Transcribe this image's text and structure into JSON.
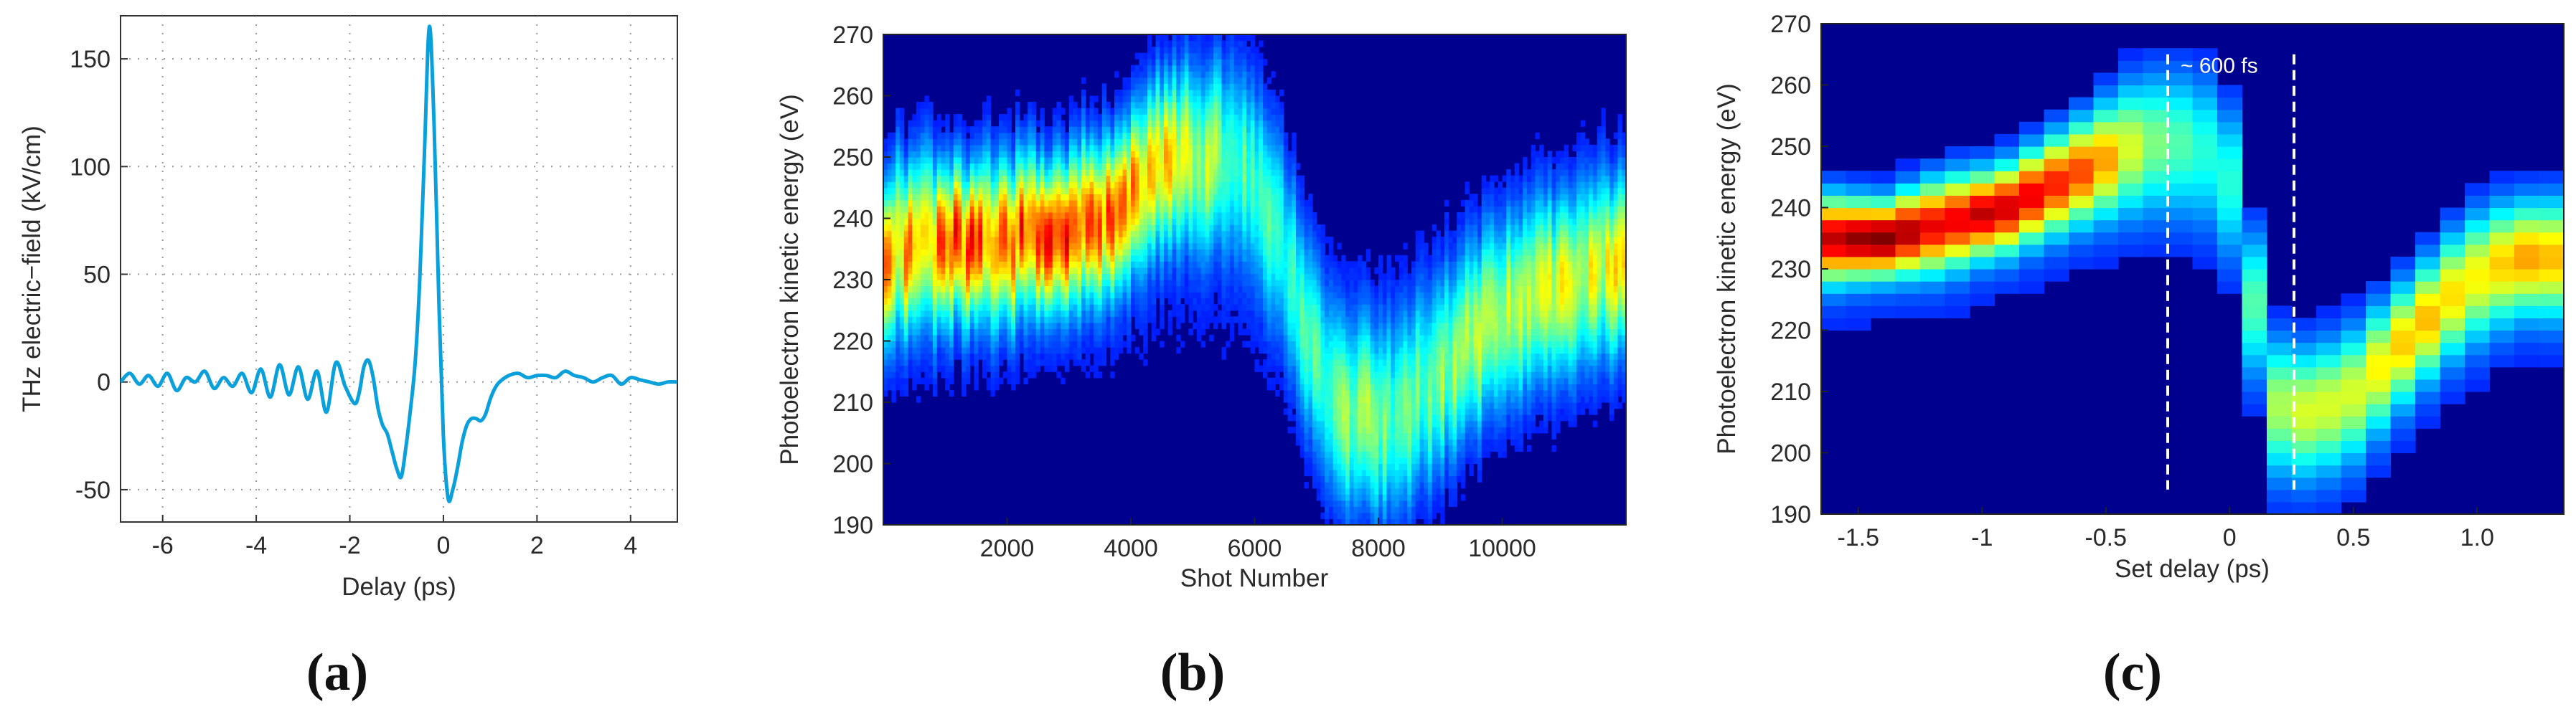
{
  "figure": {
    "panels": [
      "(a)",
      "(b)",
      "(c)"
    ]
  },
  "colors": {
    "trace": "#0aa0dc",
    "heat_low": "#00008f",
    "heat_high": "#ff0000",
    "dashed_line": "#ffffff"
  },
  "chart_data": [
    {
      "type": "line",
      "panel": "(a)",
      "title": "",
      "xlabel": "Delay (ps)",
      "ylabel": "THz electric−field (kV/cm)",
      "xlim": [
        -6.9,
        5.0
      ],
      "ylim": [
        -65,
        170
      ],
      "xticks": [
        -6,
        -4,
        -2,
        0,
        2,
        4
      ],
      "xtick_labels": [
        "-6",
        "-4",
        "-2",
        "0",
        "2",
        "4"
      ],
      "yticks": [
        -50,
        0,
        50,
        100,
        150
      ],
      "ytick_labels": [
        "-50",
        "0",
        "50",
        "100",
        "150"
      ],
      "grid": true,
      "series": [
        {
          "x": [
            -6.9,
            -6.7,
            -6.5,
            -6.3,
            -6.1,
            -5.9,
            -5.7,
            -5.5,
            -5.3,
            -5.1,
            -4.9,
            -4.7,
            -4.5,
            -4.3,
            -4.1,
            -3.9,
            -3.7,
            -3.5,
            -3.3,
            -3.1,
            -2.9,
            -2.7,
            -2.5,
            -2.3,
            -2.1,
            -1.9,
            -1.8,
            -1.7,
            -1.6,
            -1.5,
            -1.4,
            -1.3,
            -1.2,
            -1.1,
            -1.0,
            -0.9,
            -0.8,
            -0.7,
            -0.6,
            -0.5,
            -0.4,
            -0.3,
            -0.2,
            -0.1,
            0.0,
            0.1,
            0.2,
            0.3,
            0.4,
            0.5,
            0.6,
            0.7,
            0.8,
            0.9,
            1.0,
            1.1,
            1.2,
            1.4,
            1.6,
            1.8,
            2.0,
            2.2,
            2.4,
            2.6,
            2.8,
            3.0,
            3.2,
            3.4,
            3.6,
            3.8,
            4.0,
            4.2,
            4.4,
            4.6,
            4.8,
            5.0
          ],
          "y": [
            0,
            4,
            -1,
            3,
            -2,
            4,
            -4,
            2,
            0,
            5,
            -3,
            2,
            -2,
            4,
            -5,
            6,
            -7,
            8,
            -6,
            7,
            -8,
            5,
            -14,
            9,
            -2,
            -10,
            -5,
            7,
            10,
            2,
            -12,
            -20,
            -24,
            -32,
            -40,
            -44,
            -30,
            -12,
            10,
            50,
            110,
            165,
            120,
            40,
            -25,
            -54,
            -50,
            -40,
            -28,
            -20,
            -17,
            -17,
            -18,
            -15,
            -8,
            -3,
            0,
            3,
            4,
            2,
            3,
            3,
            2,
            5,
            3,
            2,
            0,
            2,
            3,
            -1,
            2,
            1,
            0,
            -1,
            0,
            0
          ]
        }
      ]
    },
    {
      "type": "heatmap",
      "panel": "(b)",
      "title": "",
      "xlabel": "Shot Number",
      "ylabel": "Photoelectron kinetic energy (eV)",
      "xlim": [
        0,
        12000
      ],
      "ylim": [
        190,
        270
      ],
      "xticks": [
        2000,
        4000,
        6000,
        8000,
        10000
      ],
      "xtick_labels": [
        "2000",
        "4000",
        "6000",
        "8000",
        "10000"
      ],
      "yticks": [
        190,
        200,
        210,
        220,
        230,
        240,
        250,
        260,
        270
      ],
      "ytick_labels": [
        "190",
        "200",
        "210",
        "220",
        "230",
        "240",
        "250",
        "260",
        "270"
      ],
      "ridge": {
        "shot": [
          0,
          1000,
          2000,
          3000,
          4000,
          4500,
          5000,
          5500,
          6000,
          6500,
          7000,
          7500,
          8000,
          8500,
          9000,
          10000,
          11000,
          12000
        ],
        "energy_ev": [
          235,
          236,
          236,
          238,
          243,
          249,
          250,
          250,
          247,
          235,
          215,
          208,
          207,
          208,
          215,
          225,
          230,
          233
        ],
        "intensity": [
          0.7,
          0.8,
          0.8,
          0.85,
          0.75,
          0.65,
          0.55,
          0.45,
          0.4,
          0.35,
          0.4,
          0.45,
          0.45,
          0.4,
          0.45,
          0.5,
          0.55,
          0.6
        ]
      }
    },
    {
      "type": "heatmap",
      "panel": "(c)",
      "title": "",
      "xlabel": "Set delay (ps)",
      "ylabel": "Photoelectron kinetic energy (eV)",
      "xlim": [
        -1.65,
        1.35
      ],
      "ylim": [
        190,
        270
      ],
      "xticks": [
        -1.5,
        -1,
        -0.5,
        0,
        0.5,
        1.0
      ],
      "xtick_labels": [
        "-1.5",
        "-1",
        "-0.5",
        "0",
        "0.5",
        "1.0"
      ],
      "yticks": [
        190,
        200,
        210,
        220,
        230,
        240,
        250,
        260,
        270
      ],
      "ytick_labels": [
        "190",
        "200",
        "210",
        "220",
        "230",
        "240",
        "250",
        "260",
        "270"
      ],
      "annotation": "~ 600 fs",
      "dashed_lines_ps": [
        -0.25,
        0.26
      ],
      "columns": {
        "delay_ps": [
          -1.6,
          -1.5,
          -1.4,
          -1.3,
          -1.2,
          -1.1,
          -1.0,
          -0.9,
          -0.8,
          -0.7,
          -0.6,
          -0.5,
          -0.4,
          -0.3,
          -0.2,
          -0.1,
          0.0,
          0.1,
          0.2,
          0.3,
          0.4,
          0.5,
          0.6,
          0.7,
          0.8,
          0.9,
          1.0,
          1.1,
          1.2,
          1.3
        ],
        "energy_ev": [
          235,
          235,
          235,
          236,
          237,
          238,
          239,
          240,
          242,
          244,
          246,
          248,
          250,
          251,
          251,
          250,
          245,
          225,
          208,
          207,
          208,
          210,
          214,
          218,
          222,
          226,
          229,
          231,
          232,
          232
        ],
        "intensity": [
          0.9,
          0.95,
          0.98,
          0.92,
          0.85,
          0.85,
          0.9,
          0.88,
          0.85,
          0.8,
          0.75,
          0.65,
          0.5,
          0.4,
          0.35,
          0.3,
          0.3,
          0.35,
          0.45,
          0.5,
          0.5,
          0.5,
          0.55,
          0.6,
          0.62,
          0.58,
          0.55,
          0.6,
          0.65,
          0.62
        ]
      }
    }
  ]
}
